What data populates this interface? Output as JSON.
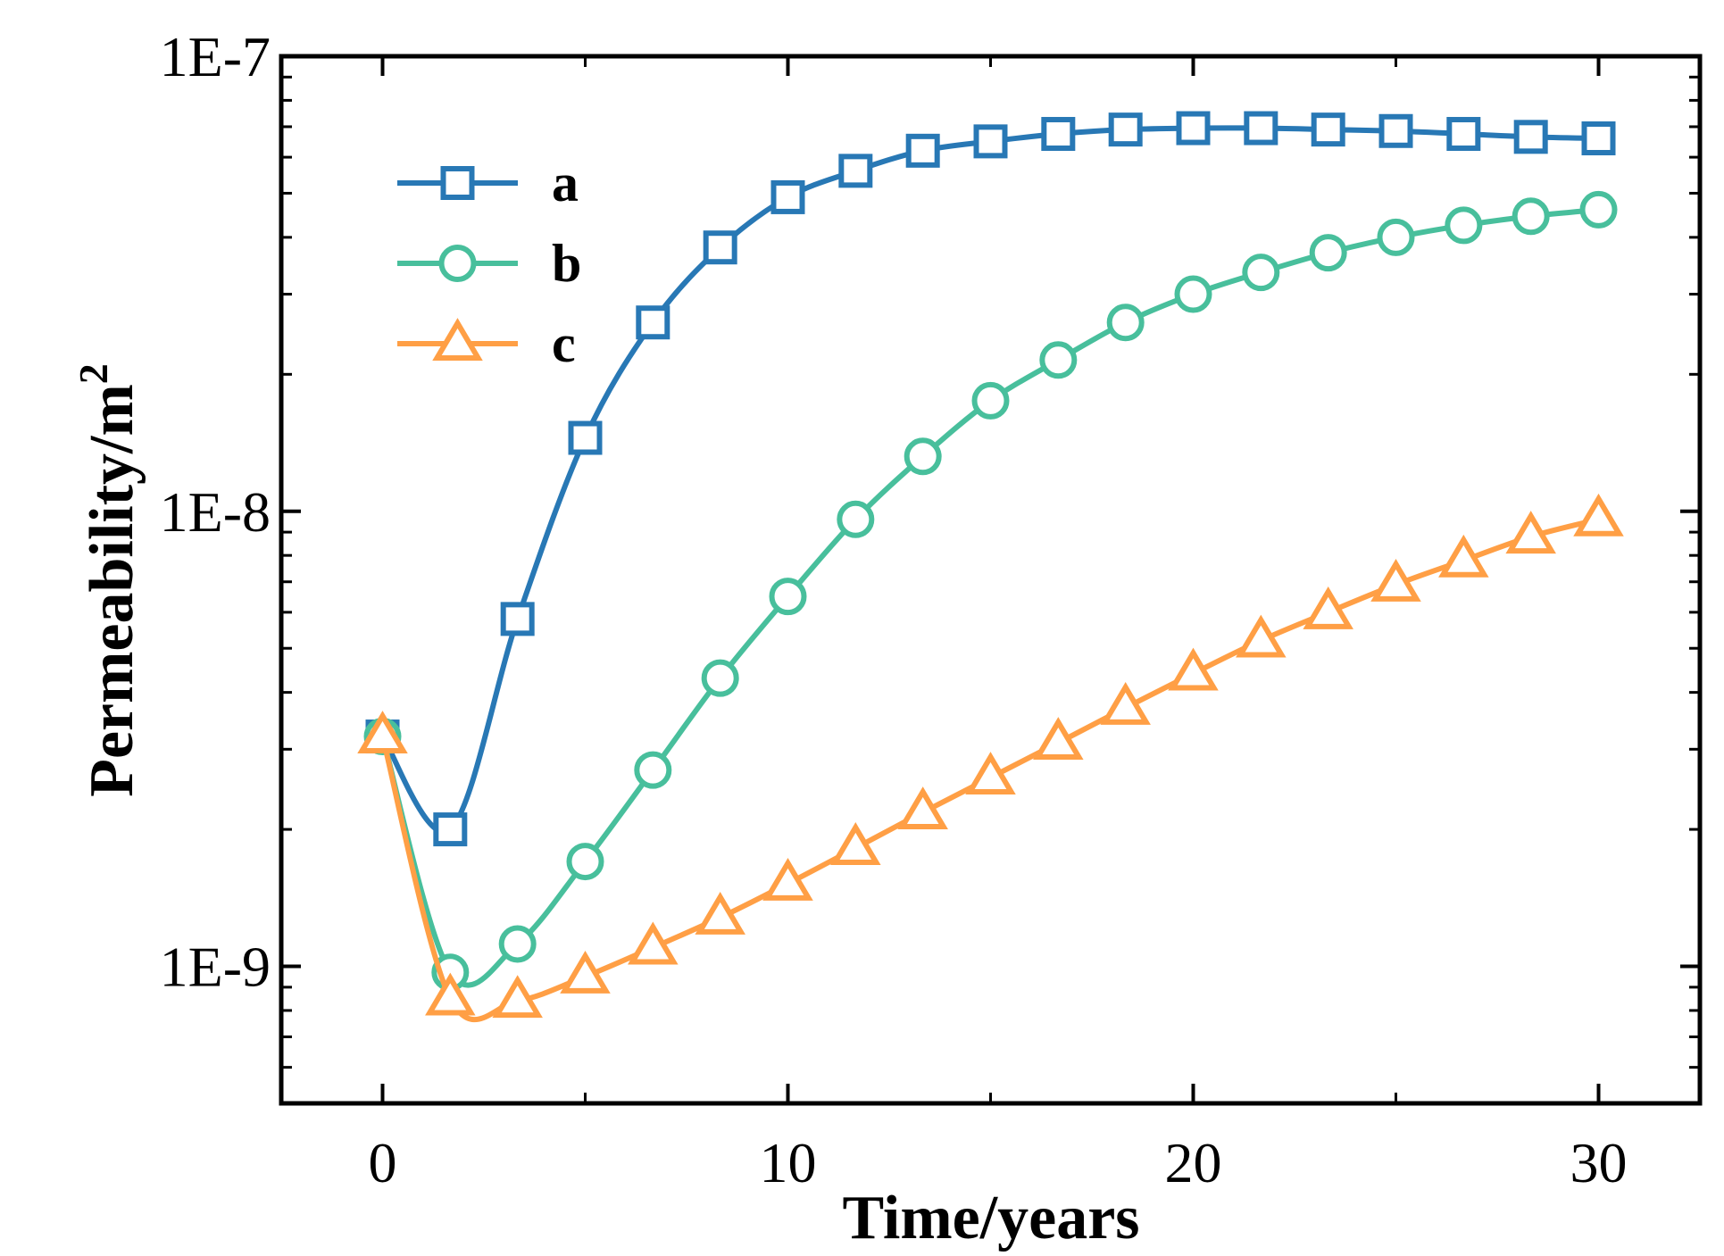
{
  "chart_data": {
    "type": "line",
    "title": "",
    "xlabel": "Time/years",
    "ylabel": "Permeability/m",
    "ylabel_superscript": "2",
    "yscale": "log",
    "xlim": [
      -2.5,
      32.5
    ],
    "ylim": [
      5e-10,
      1e-07
    ],
    "x_ticks": [
      0,
      10,
      20,
      30
    ],
    "x_tick_labels": [
      "0",
      "10",
      "20",
      "30"
    ],
    "y_ticks": [
      1e-09,
      1e-08,
      1e-07
    ],
    "y_tick_labels": [
      "1E-9",
      "1E-8",
      "1E-7"
    ],
    "grid": false,
    "legend_position": "top-left",
    "x": [
      0,
      1.67,
      3.33,
      5,
      6.67,
      8.33,
      10,
      11.67,
      13.33,
      15,
      16.67,
      18.33,
      20,
      21.67,
      23.33,
      25,
      26.67,
      28.33,
      30
    ],
    "series": [
      {
        "name": "a",
        "marker": "square",
        "color": "#2878b5",
        "values": [
          3.2e-09,
          2e-09,
          5.8e-09,
          1.45e-08,
          2.6e-08,
          3.8e-08,
          4.9e-08,
          5.6e-08,
          6.2e-08,
          6.5e-08,
          6.75e-08,
          6.9e-08,
          6.95e-08,
          6.95e-08,
          6.9e-08,
          6.85e-08,
          6.75e-08,
          6.65e-08,
          6.6e-08
        ]
      },
      {
        "name": "b",
        "marker": "circle",
        "color": "#48bf9c",
        "values": [
          3.2e-09,
          9.7e-10,
          1.12e-09,
          1.7e-09,
          2.7e-09,
          4.3e-09,
          6.5e-09,
          9.6e-09,
          1.32e-08,
          1.75e-08,
          2.15e-08,
          2.6e-08,
          3e-08,
          3.35e-08,
          3.7e-08,
          4e-08,
          4.25e-08,
          4.45e-08,
          4.6e-08
        ]
      },
      {
        "name": "c",
        "marker": "triangle",
        "color": "#ff9f45",
        "values": [
          3.2e-09,
          8.5e-10,
          8.4e-10,
          9.5e-10,
          1.1e-09,
          1.28e-09,
          1.52e-09,
          1.82e-09,
          2.18e-09,
          2.6e-09,
          3.1e-09,
          3.7e-09,
          4.4e-09,
          5.2e-09,
          6e-09,
          6.9e-09,
          7.8e-09,
          8.8e-09,
          9.6e-09
        ]
      }
    ]
  }
}
